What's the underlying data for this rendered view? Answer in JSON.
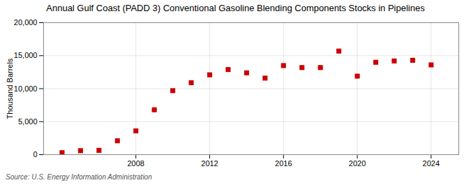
{
  "chart_data": {
    "type": "scatter",
    "title": "Annual Gulf Coast (PADD 3) Conventional Gasoline Blending Components Stocks in Pipelines",
    "ylabel": "Thousand Barrels",
    "source": "Source: U.S. Energy Information Administration",
    "x": [
      2004,
      2005,
      2006,
      2007,
      2008,
      2009,
      2010,
      2011,
      2012,
      2013,
      2014,
      2015,
      2016,
      2017,
      2018,
      2019,
      2020,
      2021,
      2022,
      2023,
      2024
    ],
    "values": [
      300,
      600,
      650,
      2100,
      3600,
      6800,
      9700,
      10900,
      12100,
      12900,
      12400,
      11600,
      13500,
      13200,
      13200,
      15700,
      11900,
      14000,
      14200,
      14300,
      13600
    ],
    "color": "#cc0000",
    "marker": "square",
    "xlim": [
      2003,
      2025.5
    ],
    "xticks": [
      2008,
      2012,
      2016,
      2020,
      2024
    ],
    "ylim": [
      0,
      20000
    ],
    "yticks": [
      0,
      {
        "value": 5000,
        "label": "5,000"
      },
      {
        "value": 10000,
        "label": "10,000"
      },
      {
        "value": 15000,
        "label": "15,000"
      },
      {
        "value": 20000,
        "label": "20,000"
      }
    ],
    "grid": true
  }
}
